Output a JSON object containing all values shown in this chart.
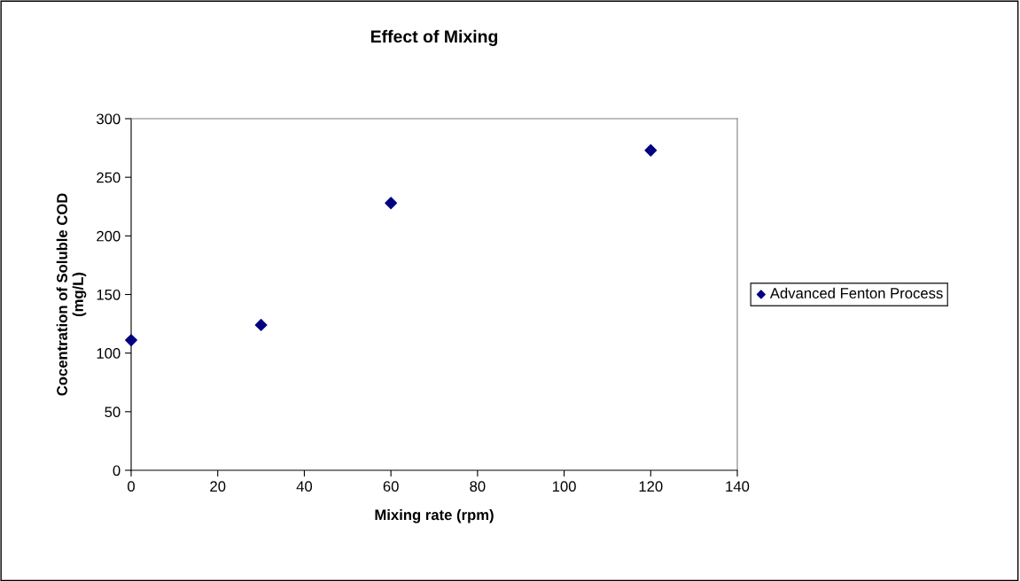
{
  "chart_data": {
    "type": "scatter",
    "title": "Effect of Mixing",
    "xlabel": "Mixing rate (rpm)",
    "ylabel": "Cocentration of Soluble COD\n(mg/L)",
    "x": [
      0,
      30,
      60,
      120
    ],
    "series": [
      {
        "name": "Advanced Fenton Process",
        "color": "#000080",
        "values": [
          111,
          124,
          228,
          273
        ]
      }
    ],
    "xlim": [
      0,
      140
    ],
    "xticks": [
      0,
      20,
      40,
      60,
      80,
      100,
      120,
      140
    ],
    "ylim": [
      0,
      300
    ],
    "yticks": [
      0,
      50,
      100,
      150,
      200,
      250,
      300
    ],
    "marker": "diamond",
    "grid": false,
    "legend": "right"
  }
}
